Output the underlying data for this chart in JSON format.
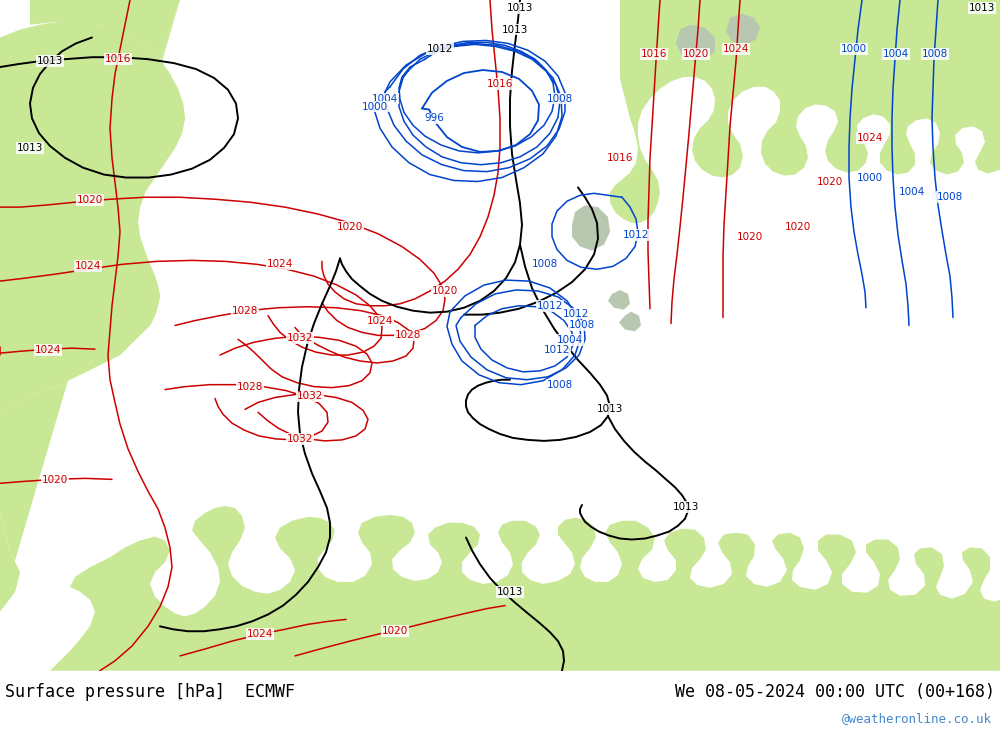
{
  "title_left": "Surface pressure [hPa]  ECMWF",
  "title_right": "We 08-05-2024 00:00 UTC (00+168)",
  "watermark": "@weatheronline.co.uk",
  "land_color": "#c8e896",
  "sea_color": "#d0d8e0",
  "fig_width": 10.0,
  "fig_height": 7.33,
  "bottom_bar_color": "#ffffff",
  "text_color": "#000000",
  "watermark_color": "#4488cc",
  "font_size_title": 12,
  "font_size_watermark": 9,
  "red": "#cc0000",
  "black": "#000000",
  "blue": "#0044cc"
}
